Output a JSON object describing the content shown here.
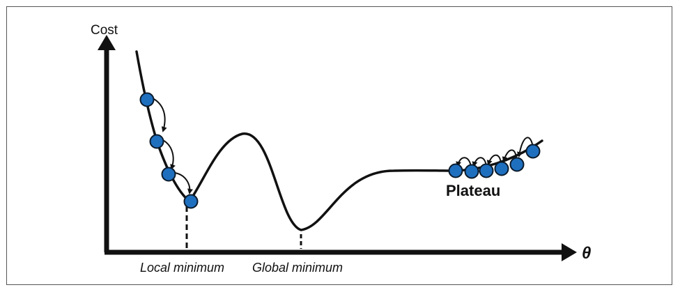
{
  "diagram": {
    "y_axis_label": "Cost",
    "x_axis_label": "θ",
    "local_min_label": "Local minimum",
    "global_min_label": "Global minimum",
    "plateau_label": "Plateau"
  },
  "colors": {
    "curve": "#111111",
    "point_fill": "#1f6fbf",
    "point_stroke": "#0a1a2a",
    "frame_border": "#555555"
  }
}
